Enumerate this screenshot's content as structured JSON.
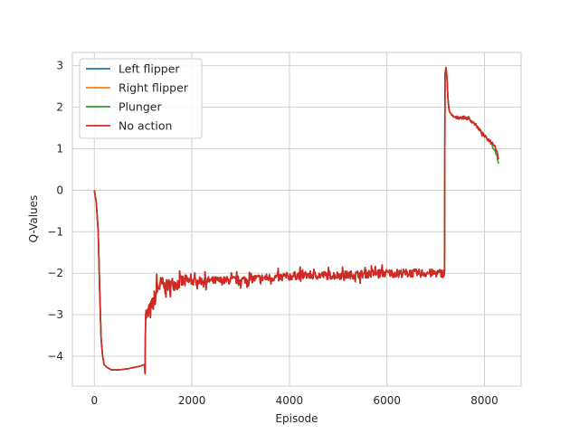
{
  "chart_data": {
    "type": "line",
    "title": "",
    "xlabel": "Episode",
    "ylabel": "Q-Values",
    "xlim": [
      -450,
      8750
    ],
    "ylim": [
      -4.72,
      3.32
    ],
    "xticks": [
      0,
      2000,
      4000,
      6000,
      8000
    ],
    "yticks": [
      -4,
      -3,
      -2,
      -1,
      0,
      1,
      2,
      3
    ],
    "xtick_labels": [
      "0",
      "2000",
      "4000",
      "6000",
      "8000"
    ],
    "ytick_labels": [
      "−4",
      "−3",
      "−2",
      "−1",
      "0",
      "1",
      "2",
      "3"
    ],
    "grid": true,
    "legend_position": "top-left",
    "colors": {
      "left_flipper": "#1f77b4",
      "right_flipper": "#ff7f0e",
      "plunger": "#2ca02c",
      "no_action": "#d62728",
      "grid": "#cccccc",
      "spine": "#cccccc"
    },
    "series": [
      {
        "name": "Left flipper",
        "color": "#1f77b4"
      },
      {
        "name": "Right flipper",
        "color": "#ff7f0e"
      },
      {
        "name": "Plunger",
        "color": "#2ca02c"
      },
      {
        "name": "No action",
        "color": "#d62728"
      }
    ],
    "shape_points": {
      "x": [
        0,
        40,
        80,
        110,
        140,
        170,
        200,
        260,
        350,
        500,
        700,
        900,
        1040,
        1050,
        1100,
        1150,
        1200,
        1250,
        1300,
        1350,
        1400,
        1450,
        1500,
        1600,
        1700,
        1800,
        1900,
        2000,
        2300,
        2600,
        3000,
        3400,
        3800,
        4200,
        4600,
        5000,
        5400,
        5800,
        6200,
        6600,
        7000,
        7180,
        7190,
        7210,
        7230,
        7250,
        7280,
        7320,
        7400,
        7500,
        7600,
        7700,
        7800,
        7900,
        8000,
        8100,
        8200,
        8250,
        8290
      ],
      "y": [
        0,
        -0.3,
        -1.0,
        -2.4,
        -3.6,
        -4.0,
        -4.2,
        -4.27,
        -4.33,
        -4.33,
        -4.3,
        -4.25,
        -4.2,
        -3.0,
        -3.0,
        -2.9,
        -2.75,
        -2.55,
        -2.35,
        -2.3,
        -2.25,
        -2.35,
        -2.3,
        -2.25,
        -2.25,
        -2.2,
        -2.2,
        -2.2,
        -2.18,
        -2.18,
        -2.16,
        -2.12,
        -2.1,
        -2.05,
        -2.05,
        -2.05,
        -2.03,
        -2.0,
        -2.0,
        -2.0,
        -2.0,
        -2.0,
        2.8,
        2.95,
        2.7,
        2.2,
        1.9,
        1.8,
        1.75,
        1.75,
        1.75,
        1.7,
        1.6,
        1.45,
        1.3,
        1.2,
        1.1,
        0.95,
        0.75
      ]
    },
    "noise": [
      {
        "from": 1040,
        "to": 1400,
        "amplitude": 0.45
      },
      {
        "from": 1400,
        "to": 2000,
        "amplitude": 0.32
      },
      {
        "from": 2000,
        "to": 7190,
        "amplitude": 0.2
      },
      {
        "from": 7190,
        "to": 8300,
        "amplitude": 0.07
      }
    ],
    "sample_step": 10,
    "x_end": 8290
  }
}
